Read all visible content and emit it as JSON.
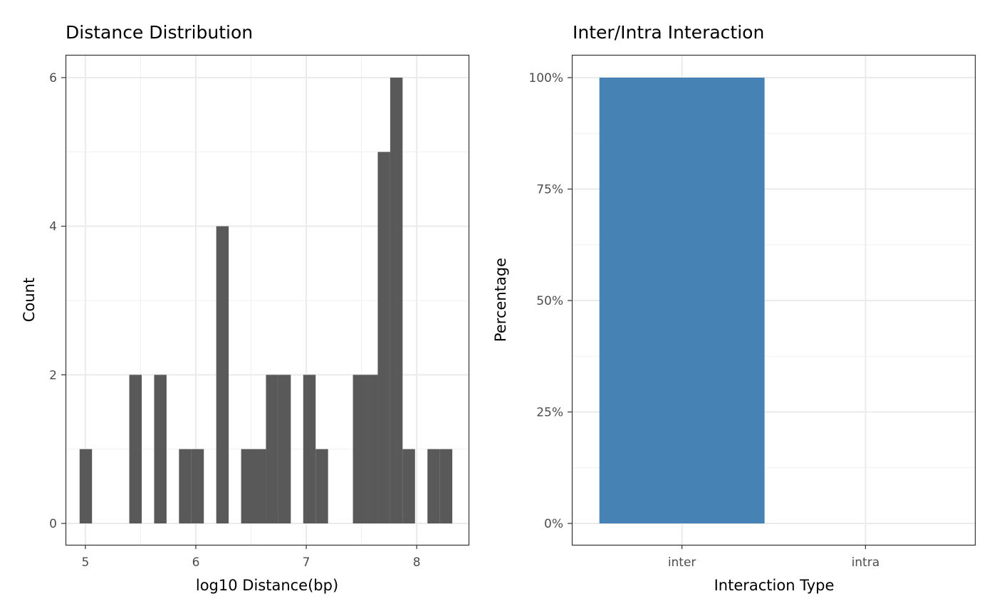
{
  "chart_data": [
    {
      "type": "bar",
      "title": "Distance Distribution",
      "xlabel": "log10 Distance(bp)",
      "ylabel": "Count",
      "xlim": [
        4.82,
        8.47
      ],
      "ylim": [
        0,
        6.3
      ],
      "x_ticks": [
        {
          "value": 5,
          "label": "5"
        },
        {
          "value": 6,
          "label": "6"
        },
        {
          "value": 7,
          "label": "7"
        },
        {
          "value": 8,
          "label": "8"
        }
      ],
      "y_ticks": [
        {
          "value": 0,
          "label": "0"
        },
        {
          "value": 2,
          "label": "2"
        },
        {
          "value": 4,
          "label": "4"
        },
        {
          "value": 6,
          "label": "6"
        }
      ],
      "bin_width": 0.1125,
      "bin_start": 4.9475,
      "counts": [
        1,
        0,
        0,
        0,
        2,
        0,
        2,
        0,
        1,
        1,
        0,
        4,
        0,
        1,
        1,
        2,
        2,
        0,
        2,
        1,
        0,
        0,
        2,
        2,
        5,
        6,
        1,
        0,
        1,
        1
      ],
      "bar_color": "#595959",
      "grid": true
    },
    {
      "type": "bar",
      "title": "Inter/Intra Interaction",
      "xlabel": "Interaction Type",
      "ylabel": "Percentage",
      "categories": [
        "inter",
        "intra"
      ],
      "values": [
        100,
        0
      ],
      "ylim": [
        0,
        105
      ],
      "y_ticks": [
        {
          "value": 0,
          "label": "0%"
        },
        {
          "value": 25,
          "label": "25%"
        },
        {
          "value": 50,
          "label": "50%"
        },
        {
          "value": 75,
          "label": "75%"
        },
        {
          "value": 100,
          "label": "100%"
        }
      ],
      "bar_color": "#4682b4",
      "grid": true
    }
  ]
}
